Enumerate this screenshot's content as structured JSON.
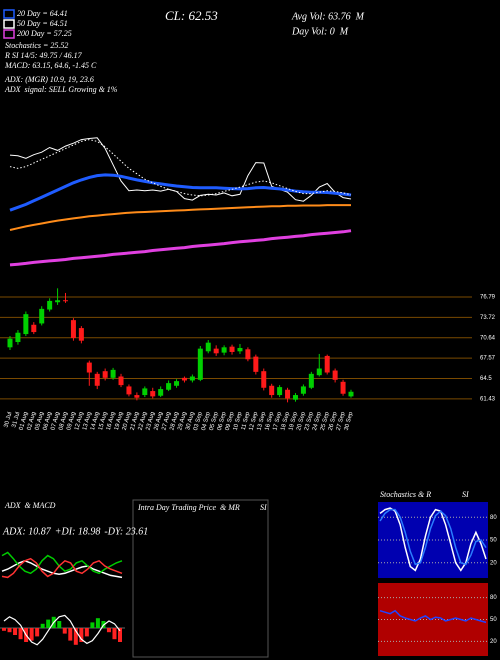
{
  "chart_data": [
    {
      "type": "candlestick",
      "price": "CL: 62.53",
      "avg_volume": "Avg Vol: 63.76  M",
      "day_volume": "Day Vol: 0  M",
      "annotations": [
        "Stochastics = 25.52",
        "R SI 14/5: 49.75 / 46.17",
        "MACD: 63.15, 64.6, -1.45 C",
        "ADX: (MGR) 10.9, 19, 23.6",
        "ADX  signal: SELL Growing & 1%"
      ],
      "categories": [
        "30 Jul",
        "31 Jul",
        "01 Aug",
        "02 Aug",
        "05 Aug",
        "06 Aug",
        "07 Aug",
        "08 Aug",
        "09 Aug",
        "12 Aug",
        "13 Aug",
        "14 Aug",
        "15 Aug",
        "16 Aug",
        "19 Aug",
        "20 Aug",
        "21 Aug",
        "22 Aug",
        "23 Aug",
        "26 Aug",
        "27 Aug",
        "28 Aug",
        "29 Aug",
        "30 Aug",
        "03 Sep",
        "04 Sep",
        "05 Sep",
        "06 Sep",
        "09 Sep",
        "10 Sep",
        "11 Sep",
        "12 Sep",
        "13 Sep",
        "16 Sep",
        "17 Sep",
        "18 Sep",
        "19 Sep",
        "20 Sep",
        "23 Sep",
        "24 Sep",
        "25 Sep",
        "26 Sep",
        "27 Sep",
        "30 Sep"
      ],
      "open": [
        69.2,
        70.0,
        71.2,
        72.6,
        72.8,
        74.9,
        76.0,
        76.3,
        73.3,
        72.1,
        66.9,
        65.2,
        65.6,
        64.6,
        64.8,
        63.3,
        62.0,
        62.0,
        62.6,
        61.9,
        62.8,
        63.4,
        64.6,
        64.2,
        64.3,
        68.6,
        69.0,
        68.4,
        69.3,
        68.6,
        68.9,
        67.8,
        65.6,
        63.4,
        62.0,
        62.8,
        61.3,
        62.2,
        63.1,
        65.0,
        67.9,
        65.7,
        64.0,
        61.8
      ],
      "high": [
        70.9,
        71.8,
        74.6,
        73.0,
        75.4,
        76.6,
        78.1,
        77.4,
        73.6,
        72.4,
        67.2,
        65.5,
        66.0,
        66.1,
        65.2,
        63.6,
        62.4,
        63.3,
        63.1,
        63.3,
        64.2,
        64.4,
        64.8,
        65.1,
        69.4,
        70.3,
        69.5,
        69.5,
        69.6,
        69.7,
        69.2,
        68.1,
        66.0,
        63.7,
        63.5,
        63.1,
        62.3,
        63.6,
        65.5,
        68.2,
        68.1,
        66.0,
        64.3,
        62.8
      ],
      "low": [
        68.8,
        69.6,
        70.9,
        71.2,
        72.5,
        74.6,
        75.6,
        75.9,
        70.2,
        69.8,
        63.4,
        62.9,
        64.2,
        64.3,
        63.2,
        61.8,
        61.2,
        61.7,
        61.5,
        61.7,
        62.6,
        63.1,
        63.9,
        63.9,
        64.1,
        68.3,
        67.9,
        68.0,
        68.1,
        68.2,
        67.1,
        65.1,
        62.7,
        61.6,
        61.7,
        60.9,
        61.0,
        61.9,
        62.9,
        64.8,
        65.1,
        63.9,
        61.9,
        61.6
      ],
      "close": [
        70.5,
        71.4,
        74.2,
        71.5,
        75.0,
        76.2,
        76.3,
        76.2,
        70.6,
        70.2,
        65.4,
        63.4,
        64.6,
        65.8,
        63.5,
        62.1,
        61.6,
        63.0,
        61.8,
        62.9,
        63.8,
        64.1,
        64.2,
        64.8,
        69.0,
        69.9,
        68.3,
        69.2,
        68.5,
        69.1,
        67.4,
        65.5,
        63.1,
        62.0,
        63.2,
        61.5,
        62.0,
        63.3,
        65.2,
        66.0,
        65.4,
        64.3,
        62.2,
        62.5
      ],
      "up_color": "#00d000",
      "down_color": "#ff1a1a",
      "ylim": [
        60.5,
        78.6
      ],
      "yticks": [
        76.79,
        73.72,
        70.64,
        67.57,
        64.5,
        61.43
      ],
      "grid": true,
      "grid_color": "#7a4a00",
      "y2lim": [
        40,
        90
      ],
      "series": [
        {
          "color": "#ffffff",
          "axis": "y2",
          "values": [
            74.7,
            74.5,
            73.8,
            74.8,
            75.5,
            76.8,
            76.0,
            77.2,
            78.0,
            79.0,
            79.3,
            79.5,
            76.5,
            72.0,
            67.5,
            64.8,
            65.0,
            64.8,
            65.0,
            64.7,
            65.2,
            64.6,
            62.6,
            62.2,
            63.5,
            63.8,
            63.6,
            64.2,
            63.4,
            63.8,
            69.0,
            72.6,
            72.5,
            66.0,
            65.2,
            64.4,
            62.3,
            61.9,
            63.5,
            65.8,
            66.8,
            64.3,
            62.9,
            62.5
          ]
        },
        {
          "name": "20 Day = 64.41",
          "color": "#1f5cff",
          "axis": "y2",
          "width": 3,
          "values": [
            59.4,
            60.2,
            61.0,
            62.0,
            63.0,
            64.0,
            65.0,
            66.0,
            67.0,
            67.8,
            68.5,
            69.0,
            69.2,
            69.1,
            68.8,
            68.3,
            67.8,
            67.4,
            67.0,
            66.7,
            66.4,
            66.1,
            65.9,
            65.7,
            65.6,
            65.6,
            65.6,
            65.5,
            65.4,
            65.3,
            65.4,
            65.6,
            65.7,
            65.5,
            65.3,
            65.0,
            64.7,
            64.5,
            64.4,
            64.4,
            64.3,
            64.1,
            63.9,
            63.6
          ]
        },
        {
          "name": "50 Day = 64.51",
          "color": "#ffffff",
          "axis": "y2",
          "style": "dotted",
          "values": [
            71.5,
            71.0,
            71.5,
            72.5,
            73.5,
            74.5,
            75.5,
            76.5,
            77.5,
            78.5,
            79.0,
            78.5,
            77.0,
            75.0,
            73.0,
            71.0,
            69.5,
            68.0,
            67.0,
            66.0,
            65.2,
            64.6,
            64.0,
            63.6,
            63.4,
            63.6,
            64.0,
            64.6,
            65.2,
            65.8,
            66.5,
            67.2,
            67.5,
            67.0,
            66.2,
            65.4,
            64.6,
            64.0,
            64.0,
            64.4,
            64.8,
            64.6,
            64.2,
            63.7
          ]
        },
        {
          "color": "#ff8c1a",
          "axis": "y2",
          "width": 2,
          "values": [
            53.9,
            54.4,
            54.9,
            55.3,
            55.7,
            56.1,
            56.5,
            56.8,
            57.1,
            57.4,
            57.7,
            57.9,
            58.1,
            58.3,
            58.5,
            58.7,
            58.8,
            58.9,
            59.0,
            59.1,
            59.2,
            59.3,
            59.4,
            59.5,
            59.6,
            59.7,
            59.8,
            59.9,
            60.0,
            60.1,
            60.2,
            60.3,
            60.4,
            60.5,
            60.5,
            60.6,
            60.6,
            60.7,
            60.7,
            60.7,
            60.8,
            60.8,
            60.8,
            60.8
          ]
        },
        {
          "name": "200 Day = 57.25",
          "color": "#e040e0",
          "axis": "y2",
          "width": 3,
          "values": [
            44.2,
            44.4,
            44.6,
            44.9,
            45.1,
            45.3,
            45.5,
            45.7,
            46.0,
            46.2,
            46.4,
            46.6,
            46.8,
            47.1,
            47.3,
            47.5,
            47.7,
            47.9,
            48.2,
            48.4,
            48.6,
            48.8,
            49.0,
            49.3,
            49.5,
            49.7,
            49.9,
            50.1,
            50.4,
            50.6,
            50.8,
            51.0,
            51.2,
            51.5,
            51.7,
            51.9,
            52.1,
            52.3,
            52.6,
            52.8,
            53.0,
            53.2,
            53.4,
            53.7
          ]
        }
      ]
    },
    {
      "type": "line",
      "title": "ADX  & MACD",
      "ylim": [
        0,
        50
      ],
      "series": [
        {
          "name": "ADX: 10.87",
          "color": "#ffffff",
          "values": [
            20,
            22,
            25,
            28,
            30,
            28,
            25,
            22,
            20,
            18,
            17,
            18,
            20,
            22,
            24,
            25,
            22,
            20,
            18,
            16,
            15,
            14
          ]
        },
        {
          "name": "+DI: 18.98",
          "color": "#00cc00",
          "values": [
            35,
            38,
            32,
            25,
            20,
            18,
            22,
            30,
            35,
            32,
            25,
            20,
            22,
            28,
            30,
            25,
            20,
            18,
            22,
            25,
            28,
            30
          ]
        },
        {
          "name": "-DY: 23.61",
          "color": "#ff3333",
          "values": [
            15,
            14,
            18,
            25,
            30,
            32,
            28,
            20,
            15,
            18,
            25,
            30,
            28,
            20,
            18,
            22,
            28,
            30,
            25,
            22,
            20,
            18
          ]
        }
      ]
    },
    {
      "type": "bar",
      "values": [
        -0.2,
        -0.3,
        -0.5,
        -0.8,
        -1.0,
        -0.9,
        -0.6,
        0.3,
        0.6,
        0.8,
        0.5,
        -0.4,
        -0.9,
        -1.2,
        -1.0,
        -0.6,
        0.4,
        0.7,
        0.5,
        -0.3,
        -0.8,
        -1.0
      ],
      "up_color": "#00cc00",
      "down_color": "#ff2222",
      "ylim": [
        -2,
        2
      ],
      "series": [
        {
          "color": "#ffffff",
          "values": [
            0.5,
            0.8,
            0.6,
            0.2,
            -0.5,
            -1.0,
            -1.2,
            -0.8,
            -0.2,
            0.4,
            0.8,
            0.9,
            0.5,
            -0.2,
            -0.8,
            -1.1,
            -0.9,
            -0.4,
            0.2,
            0.5,
            0.3,
            -0.2
          ]
        }
      ]
    },
    {
      "type": "line",
      "title": "Intra Day Trading Price  & MR",
      "subtitle": "SI",
      "series": []
    },
    {
      "type": "line",
      "title": "Stochastics & R",
      "subtitle": "SI",
      "background": "#0000b0",
      "ylim": [
        0,
        100
      ],
      "yticks": [
        80,
        50,
        20
      ],
      "series": [
        {
          "color": "#ffffff",
          "values": [
            85,
            90,
            92,
            88,
            70,
            40,
            15,
            10,
            25,
            55,
            80,
            90,
            88,
            70,
            45,
            20,
            10,
            20,
            45,
            60,
            45,
            25
          ]
        },
        {
          "color": "#2a7cff",
          "values": [
            75,
            85,
            90,
            90,
            80,
            60,
            35,
            18,
            20,
            40,
            65,
            82,
            88,
            82,
            65,
            40,
            20,
            18,
            30,
            48,
            50,
            40
          ]
        }
      ]
    },
    {
      "type": "line",
      "background": "#b00000",
      "ylim": [
        0,
        100
      ],
      "yticks": [
        80,
        50,
        20
      ],
      "series": [
        {
          "color": "#2244ff",
          "values": [
            62,
            60,
            58,
            62,
            55,
            52,
            50,
            48,
            52,
            55,
            50,
            53,
            52,
            48,
            50,
            52,
            50,
            48,
            52,
            50,
            48,
            46
          ]
        }
      ]
    }
  ]
}
